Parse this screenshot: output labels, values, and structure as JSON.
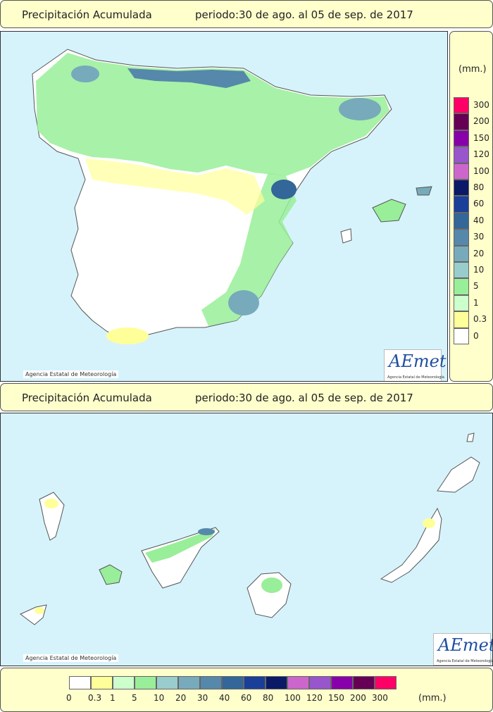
{
  "header_top": {
    "title": "Precipitación Acumulada",
    "period": "periodo:30 de ago. al 05 de sep. de 2017"
  },
  "header_bottom": {
    "title": "Precipitación Acumulada",
    "period": "periodo:30 de ago. al 05 de sep. de 2017"
  },
  "credit": "Agencia Estatal de Meteorología",
  "logo": {
    "text": "AEmet",
    "sub": "Agencia Estatal de Meteorología"
  },
  "legend": {
    "unit": "(mm.)",
    "steps": [
      {
        "label": "0",
        "color": "#ffffff"
      },
      {
        "label": "0.3",
        "color": "#ffff99"
      },
      {
        "label": "1",
        "color": "#ccffcc"
      },
      {
        "label": "5",
        "color": "#99ee99"
      },
      {
        "label": "10",
        "color": "#99cccc"
      },
      {
        "label": "20",
        "color": "#77aabb"
      },
      {
        "label": "30",
        "color": "#5588aa"
      },
      {
        "label": "40",
        "color": "#336699"
      },
      {
        "label": "60",
        "color": "#1a3f99"
      },
      {
        "label": "80",
        "color": "#0a1a66"
      },
      {
        "label": "100",
        "color": "#cc66cc"
      },
      {
        "label": "120",
        "color": "#9955cc"
      },
      {
        "label": "150",
        "color": "#8800aa"
      },
      {
        "label": "200",
        "color": "#660055"
      },
      {
        "label": "300",
        "color": "#ff0066"
      }
    ]
  },
  "colors": {
    "sea": "#d6f3fb",
    "land": "#ffffff",
    "panel": "#ffffcc",
    "border": "#555555"
  }
}
